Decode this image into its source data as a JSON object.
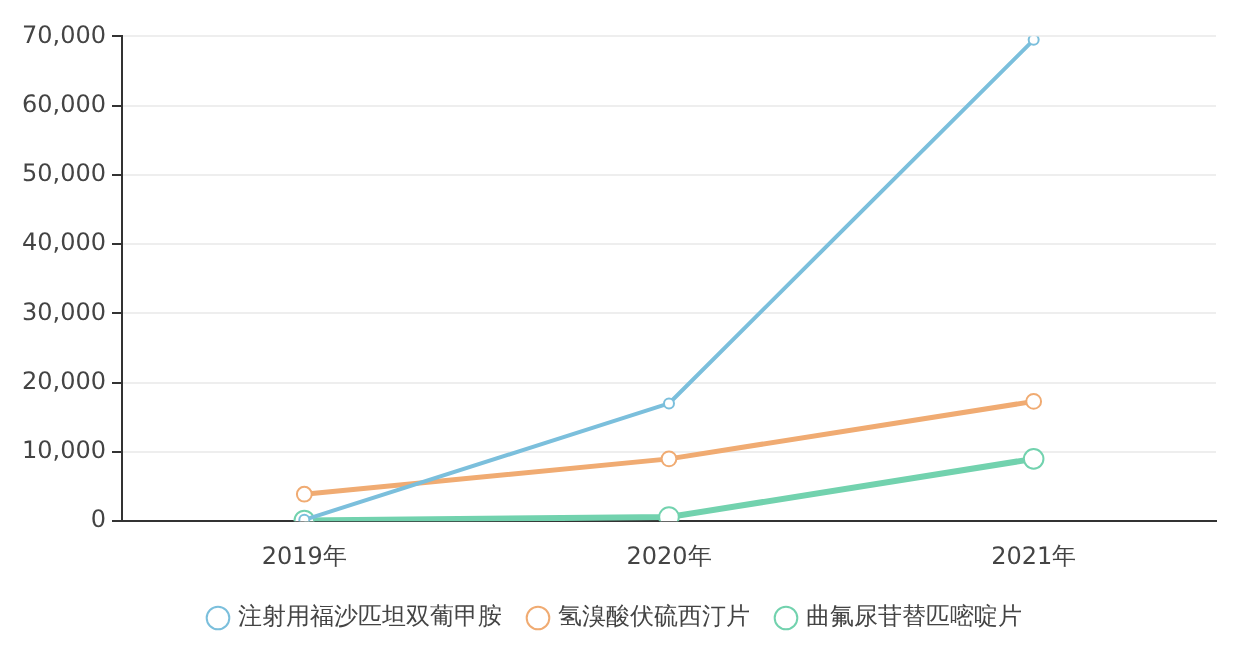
{
  "chart_data": {
    "type": "line",
    "categories": [
      "2019年",
      "2020年",
      "2021年"
    ],
    "series": [
      {
        "name": "注射用福沙匹坦双葡甲胺",
        "color": "#7bbfdc",
        "values": [
          200,
          17000,
          69500
        ]
      },
      {
        "name": "氢溴酸伏硫西汀片",
        "color": "#f0ab72",
        "values": [
          3900,
          9000,
          17300
        ]
      },
      {
        "name": "曲氟尿苷替匹嘧啶片",
        "color": "#72d2ae",
        "values": [
          100,
          600,
          9000
        ]
      }
    ],
    "ylim": [
      0,
      70000
    ],
    "yticks": [
      {
        "value": 0,
        "label": "0"
      },
      {
        "value": 10000,
        "label": "10,000"
      },
      {
        "value": 20000,
        "label": "20,000"
      },
      {
        "value": 30000,
        "label": "30,000"
      },
      {
        "value": 40000,
        "label": "40,000"
      },
      {
        "value": 50000,
        "label": "50,000"
      },
      {
        "value": 60000,
        "label": "60,000"
      },
      {
        "value": 70000,
        "label": "70,000"
      }
    ],
    "grid": "y",
    "legend": "bottom",
    "marker": "circle",
    "line_style": "solid"
  }
}
